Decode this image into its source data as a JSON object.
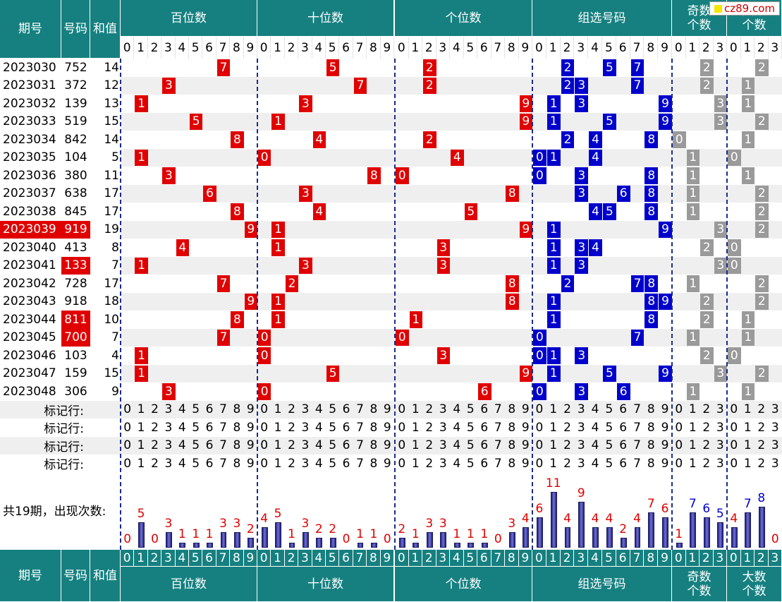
{
  "header": {
    "period": "期号",
    "number": "号码",
    "sum": "和值",
    "groups": [
      {
        "label": "百位数",
        "digits": [
          "0",
          "1",
          "2",
          "3",
          "4",
          "5",
          "6",
          "7",
          "8",
          "9"
        ]
      },
      {
        "label": "十位数",
        "digits": [
          "0",
          "1",
          "2",
          "3",
          "4",
          "5",
          "6",
          "7",
          "8",
          "9"
        ]
      },
      {
        "label": "个位数",
        "digits": [
          "0",
          "1",
          "2",
          "3",
          "4",
          "5",
          "6",
          "7",
          "8",
          "9"
        ]
      },
      {
        "label": "组选号码",
        "digits": [
          "0",
          "1",
          "2",
          "3",
          "4",
          "5",
          "6",
          "7",
          "8",
          "9"
        ]
      },
      {
        "label": "奇数\n个数",
        "digits": [
          "0",
          "1",
          "2",
          "3"
        ]
      },
      {
        "label": "大数\n个数",
        "digits": [
          "0",
          "1",
          "2",
          "3"
        ]
      }
    ]
  },
  "logo": {
    "text": "cz89.com"
  },
  "rows": [
    {
      "period": "2023030",
      "number": "752",
      "sum": "14",
      "hundreds": 7,
      "tens": 5,
      "units": 2,
      "group": [
        2,
        5,
        7
      ],
      "odd": 2,
      "big": 2
    },
    {
      "period": "2023031",
      "number": "372",
      "sum": "12",
      "hundreds": 3,
      "tens": 7,
      "units": 2,
      "group": [
        2,
        3,
        7
      ],
      "odd": 2,
      "big": 1
    },
    {
      "period": "2023032",
      "number": "139",
      "sum": "13",
      "hundreds": 1,
      "tens": 3,
      "units": 9,
      "group": [
        1,
        3,
        9
      ],
      "odd": 3,
      "big": 1
    },
    {
      "period": "2023033",
      "number": "519",
      "sum": "15",
      "hundreds": 5,
      "tens": 1,
      "units": 9,
      "group": [
        1,
        5,
        9
      ],
      "odd": 3,
      "big": 2
    },
    {
      "period": "2023034",
      "number": "842",
      "sum": "14",
      "hundreds": 8,
      "tens": 4,
      "units": 2,
      "group": [
        2,
        4,
        8
      ],
      "odd": 0,
      "big": 1
    },
    {
      "period": "2023035",
      "number": "104",
      "sum": "5",
      "hundreds": 1,
      "tens": 0,
      "units": 4,
      "group": [
        0,
        1,
        4
      ],
      "odd": 1,
      "big": 0
    },
    {
      "period": "2023036",
      "number": "380",
      "sum": "11",
      "hundreds": 3,
      "tens": 8,
      "units": 0,
      "group": [
        0,
        3,
        8
      ],
      "odd": 1,
      "big": 1
    },
    {
      "period": "2023037",
      "number": "638",
      "sum": "17",
      "hundreds": 6,
      "tens": 3,
      "units": 8,
      "group": [
        3,
        6,
        8
      ],
      "odd": 1,
      "big": 2
    },
    {
      "period": "2023038",
      "number": "845",
      "sum": "17",
      "hundreds": 8,
      "tens": 4,
      "units": 5,
      "group": [
        4,
        5,
        8
      ],
      "odd": 1,
      "big": 2
    },
    {
      "period": "2023039",
      "number": "919",
      "sum": "19",
      "hundreds": 9,
      "tens": 1,
      "units": 9,
      "group": [
        1,
        9
      ],
      "odd": 3,
      "big": 2,
      "hl_period": true
    },
    {
      "period": "2023040",
      "number": "413",
      "sum": "8",
      "hundreds": 4,
      "tens": 1,
      "units": 3,
      "group": [
        1,
        3,
        4
      ],
      "odd": 2,
      "big": 0
    },
    {
      "period": "2023041",
      "number": "133",
      "sum": "7",
      "hundreds": 1,
      "tens": 3,
      "units": 3,
      "group": [
        1,
        3
      ],
      "odd": 3,
      "big": 0,
      "hl_number": true
    },
    {
      "period": "2023042",
      "number": "728",
      "sum": "17",
      "hundreds": 7,
      "tens": 2,
      "units": 8,
      "group": [
        2,
        7,
        8
      ],
      "odd": 1,
      "big": 2
    },
    {
      "period": "2023043",
      "number": "918",
      "sum": "18",
      "hundreds": 9,
      "tens": 1,
      "units": 8,
      "group": [
        1,
        8,
        9
      ],
      "odd": 2,
      "big": 2
    },
    {
      "period": "2023044",
      "number": "811",
      "sum": "10",
      "hundreds": 8,
      "tens": 1,
      "units": 1,
      "group": [
        1,
        8
      ],
      "odd": 2,
      "big": 1,
      "hl_number": true
    },
    {
      "period": "2023045",
      "number": "700",
      "sum": "7",
      "hundreds": 7,
      "tens": 0,
      "units": 0,
      "group": [
        0,
        7
      ],
      "odd": 1,
      "big": 1,
      "hl_number": true
    },
    {
      "period": "2023046",
      "number": "103",
      "sum": "4",
      "hundreds": 1,
      "tens": 0,
      "units": 3,
      "group": [
        0,
        1,
        3
      ],
      "odd": 2,
      "big": 0
    },
    {
      "period": "2023047",
      "number": "159",
      "sum": "15",
      "hundreds": 1,
      "tens": 5,
      "units": 9,
      "group": [
        1,
        5,
        9
      ],
      "odd": 3,
      "big": 2
    },
    {
      "period": "2023048",
      "number": "306",
      "sum": "9",
      "hundreds": 3,
      "tens": 0,
      "units": 6,
      "group": [
        0,
        3,
        6
      ],
      "odd": 1,
      "big": 1
    }
  ],
  "marker_label": "标记行:",
  "marker_rows": 4,
  "count_label": "共19期，出现次数:",
  "chart_data": {
    "type": "bar",
    "title": "共19期，出现次数:",
    "series": [
      {
        "name": "百位数",
        "categories": [
          "0",
          "1",
          "2",
          "3",
          "4",
          "5",
          "6",
          "7",
          "8",
          "9"
        ],
        "values": [
          0,
          5,
          0,
          3,
          1,
          1,
          1,
          3,
          3,
          2
        ]
      },
      {
        "name": "十位数",
        "categories": [
          "0",
          "1",
          "2",
          "3",
          "4",
          "5",
          "6",
          "7",
          "8",
          "9"
        ],
        "values": [
          4,
          5,
          1,
          3,
          2,
          2,
          0,
          1,
          1,
          0
        ]
      },
      {
        "name": "个位数",
        "categories": [
          "0",
          "1",
          "2",
          "3",
          "4",
          "5",
          "6",
          "7",
          "8",
          "9"
        ],
        "values": [
          2,
          1,
          3,
          3,
          1,
          1,
          1,
          0,
          3,
          4
        ]
      },
      {
        "name": "组选号码",
        "categories": [
          "0",
          "1",
          "2",
          "3",
          "4",
          "5",
          "6",
          "7",
          "8",
          "9"
        ],
        "values": [
          6,
          11,
          4,
          9,
          4,
          4,
          2,
          4,
          7,
          6
        ]
      },
      {
        "name": "奇数个数",
        "categories": [
          "0",
          "1",
          "2",
          "3"
        ],
        "values": [
          1,
          7,
          6,
          5
        ]
      },
      {
        "name": "大数个数",
        "categories": [
          "0",
          "1",
          "2",
          "3"
        ],
        "values": [
          4,
          7,
          8,
          0
        ]
      }
    ],
    "colors": {
      "low": "#e00000",
      "high": "#0000cc"
    }
  },
  "colors": {
    "header": "#168080",
    "hundreds": "#e00000",
    "tens": "#e00000",
    "units": "#e00000",
    "group": "#0000cc",
    "counts": "#9a9a9a",
    "stripe": "#efefef"
  }
}
